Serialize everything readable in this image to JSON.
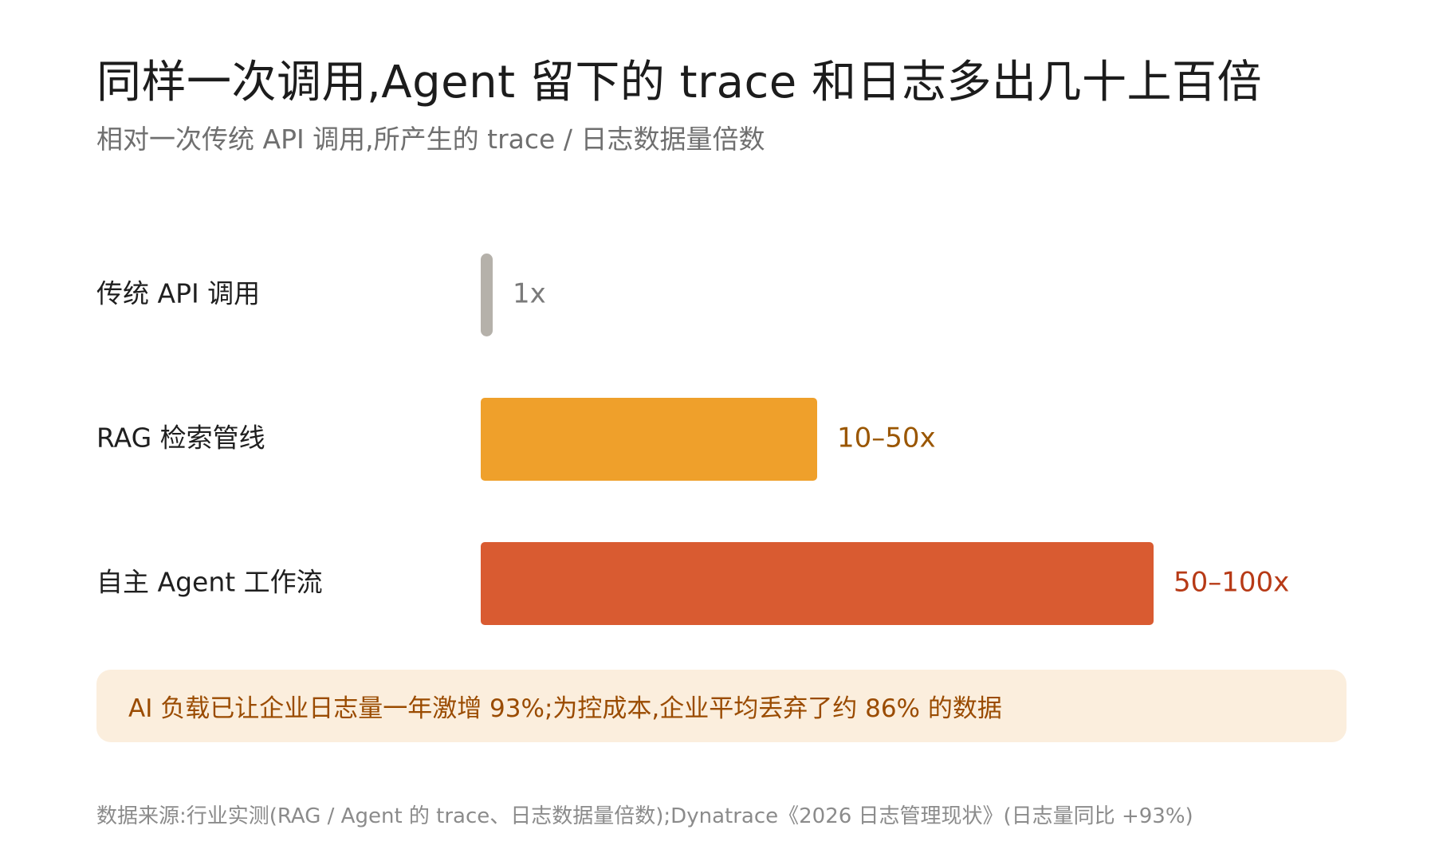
{
  "title": "同样一次调用,Agent 留下的 trace 和日志多出几十上百倍",
  "subtitle": "相对一次传统 API 调用,所产生的 trace / 日志数据量倍数",
  "chart_data": {
    "type": "bar",
    "orientation": "horizontal",
    "categories": [
      "传统 API 调用",
      "RAG 检索管线",
      "自主 Agent 工作流"
    ],
    "values": [
      1,
      50,
      100
    ],
    "value_labels": [
      "1x",
      "10–50x",
      "50–100x"
    ],
    "colors": [
      "#b5b1aa",
      "#efa02b",
      "#d95b31"
    ],
    "label_colors": [
      "#7a7a7a",
      "#9a5600",
      "#b73a16"
    ],
    "xlim": [
      0,
      100
    ],
    "grid": false,
    "legend": "none"
  },
  "callout": "AI 负载已让企业日志量一年激增 93%;为控成本,企业平均丢弃了约 86% 的数据",
  "source": "数据来源:行业实测(RAG / Agent 的 trace、日志数据量倍数);Dynatrace《2026 日志管理现状》(日志量同比 +93%)"
}
